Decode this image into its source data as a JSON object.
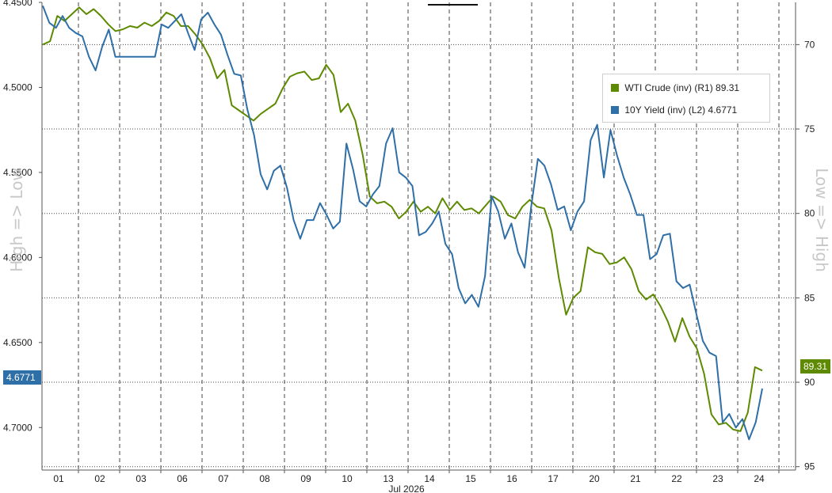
{
  "colors": {
    "wti": "#5d8a00",
    "yield": "#2f6fa7",
    "grid": "#444444",
    "axis_title": "#c8c8c8"
  },
  "chart_data": {
    "type": "line",
    "xlabel": "Jul 2026",
    "x_tick_labels": [
      "01",
      "02",
      "03",
      "06",
      "07",
      "08",
      "09",
      "10",
      "13",
      "14",
      "15",
      "16",
      "17",
      "20",
      "21",
      "22",
      "23",
      "24"
    ],
    "left_axis": {
      "title": "High => Low",
      "inverted": true,
      "ticks": [
        "4.4500",
        "4.5000",
        "4.5500",
        "4.6000",
        "4.6500",
        "4.7000"
      ],
      "ylim": [
        4.45,
        4.725
      ]
    },
    "right_axis": {
      "title": "Low => High",
      "inverted": true,
      "ticks": [
        "70",
        "75",
        "80",
        "85",
        "90",
        "95"
      ],
      "ylim": [
        67.5,
        95.2
      ]
    },
    "series": [
      {
        "name": "WTI Crude (inv) (R1)",
        "axis": "right",
        "last": "89.31",
        "values": [
          70.0,
          69.8,
          68.3,
          68.6,
          68.2,
          67.8,
          68.2,
          67.9,
          68.3,
          68.8,
          69.2,
          69.1,
          68.9,
          69.0,
          68.7,
          68.9,
          68.6,
          68.1,
          68.3,
          68.9,
          68.9,
          69.4,
          70.0,
          70.8,
          72.0,
          71.5,
          73.6,
          73.9,
          74.2,
          74.5,
          74.1,
          73.8,
          73.5,
          72.6,
          71.9,
          71.7,
          71.6,
          72.1,
          72.0,
          71.2,
          71.8,
          74.0,
          73.5,
          74.5,
          76.5,
          79.0,
          79.4,
          79.3,
          79.6,
          80.3,
          79.9,
          79.3,
          79.9,
          79.6,
          80.0,
          79.1,
          79.8,
          79.3,
          79.8,
          79.7,
          80.0,
          79.5,
          79.0,
          79.3,
          80.1,
          80.3,
          79.6,
          79.2,
          79.6,
          79.7,
          81.0,
          83.8,
          86.0,
          85.0,
          84.6,
          82.0,
          82.3,
          82.4,
          83.0,
          82.9,
          82.6,
          83.3,
          84.6,
          85.1,
          84.8,
          85.5,
          86.4,
          87.6,
          86.2,
          87.3,
          88.0,
          89.5,
          91.9,
          92.5,
          92.4,
          92.8,
          92.9,
          91.8,
          89.1,
          89.31
        ]
      },
      {
        "name": "10Y Yield (inv) (L2)",
        "axis": "left",
        "last": "4.6771",
        "values": [
          4.452,
          4.462,
          4.465,
          4.458,
          4.465,
          4.468,
          4.47,
          4.482,
          4.49,
          4.476,
          4.466,
          4.482,
          4.482,
          4.482,
          4.482,
          4.482,
          4.482,
          4.482,
          4.463,
          4.465,
          4.461,
          4.457,
          4.468,
          4.478,
          4.46,
          4.456,
          4.463,
          4.469,
          4.481,
          4.492,
          4.493,
          4.513,
          4.528,
          4.551,
          4.56,
          4.549,
          4.546,
          4.559,
          4.578,
          4.589,
          4.578,
          4.578,
          4.568,
          4.575,
          4.583,
          4.579,
          4.533,
          4.548,
          4.567,
          4.57,
          4.563,
          4.558,
          4.533,
          4.524,
          4.55,
          4.553,
          4.558,
          4.587,
          4.585,
          4.58,
          4.573,
          4.592,
          4.598,
          4.618,
          4.627,
          4.622,
          4.629,
          4.611,
          4.564,
          4.573,
          4.589,
          4.58,
          4.597,
          4.606,
          4.57,
          4.542,
          4.546,
          4.557,
          4.572,
          4.57,
          4.584,
          4.573,
          4.567,
          4.531,
          4.522,
          4.553,
          4.525,
          4.54,
          4.553,
          4.563,
          4.575,
          4.575,
          4.601,
          4.598,
          4.587,
          4.586,
          4.614,
          4.618,
          4.616,
          4.633,
          4.649,
          4.656,
          4.658,
          4.697,
          4.692,
          4.7,
          4.695,
          4.707,
          4.697,
          4.6771
        ]
      }
    ],
    "grid": true,
    "legend_position": "top-right"
  }
}
